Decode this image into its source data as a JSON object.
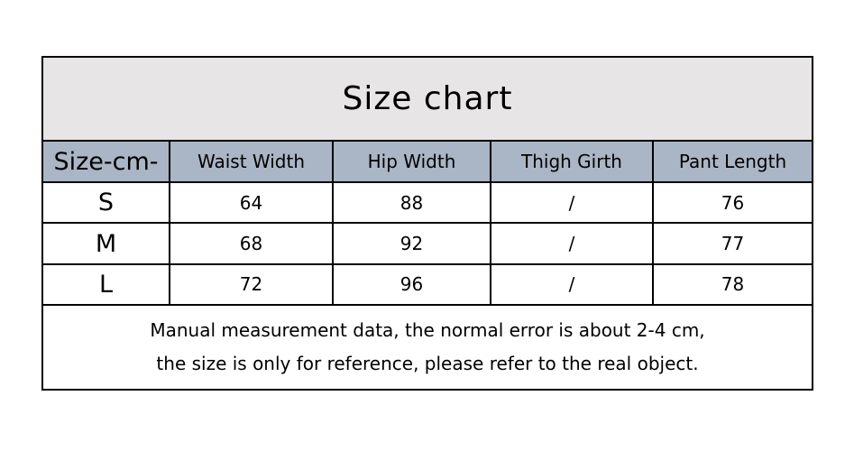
{
  "colors": {
    "page_bg": "#ffffff",
    "title_band_bg": "#e7e5e6",
    "header_row_bg": "#aab5c6",
    "table_border": "#000000",
    "text": "#000000"
  },
  "size_chart": {
    "title": "Size chart",
    "unit_header": "Size-cm-",
    "columns": [
      "Waist Width",
      "Hip Width",
      "Thigh Girth",
      "Pant Length"
    ],
    "rows": [
      {
        "size": "S",
        "cells": [
          "64",
          "88",
          "/",
          "76"
        ]
      },
      {
        "size": "M",
        "cells": [
          "68",
          "92",
          "/",
          "77"
        ]
      },
      {
        "size": "L",
        "cells": [
          "72",
          "96",
          "/",
          "78"
        ]
      }
    ],
    "note_line_1": "Manual measurement data, the normal error is about 2-4 cm,",
    "note_line_2": "the size is only for reference, please refer to the real object."
  },
  "chart_data": {
    "type": "table",
    "title": "Size chart",
    "columns": [
      "Size-cm-",
      "Waist Width",
      "Hip Width",
      "Thigh Girth",
      "Pant Length"
    ],
    "rows": [
      [
        "S",
        "64",
        "88",
        "/",
        "76"
      ],
      [
        "M",
        "68",
        "92",
        "/",
        "77"
      ],
      [
        "L",
        "72",
        "96",
        "/",
        "78"
      ]
    ],
    "footnote": "Manual measurement data, the normal error is about 2-4 cm, the size is only for reference, please refer to the real object."
  }
}
